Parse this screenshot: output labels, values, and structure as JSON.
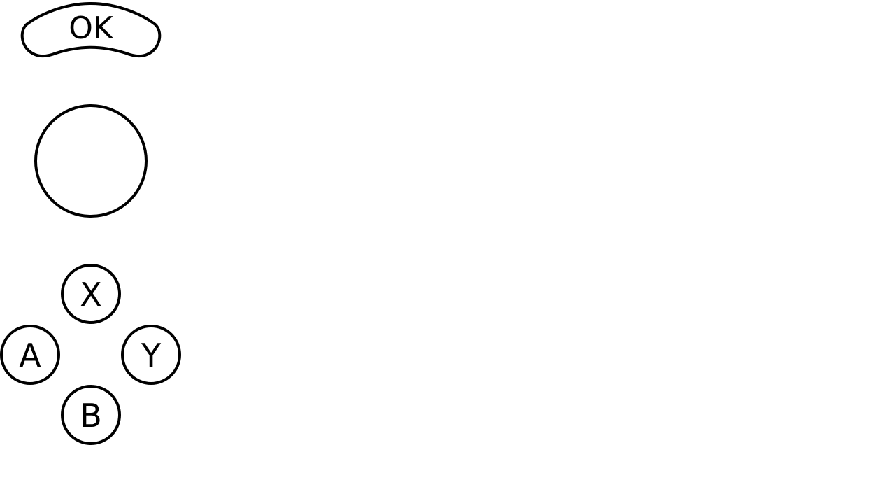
{
  "colors": {
    "background": "#ffffff",
    "stroke": "#000000",
    "text": "#000000"
  },
  "controls": {
    "ok_button": {
      "label": "OK"
    },
    "joystick": {
      "icon": "joystick-circle"
    },
    "face_buttons": {
      "x": {
        "label": "X"
      },
      "a": {
        "label": "A"
      },
      "y": {
        "label": "Y"
      },
      "b": {
        "label": "B"
      }
    }
  }
}
